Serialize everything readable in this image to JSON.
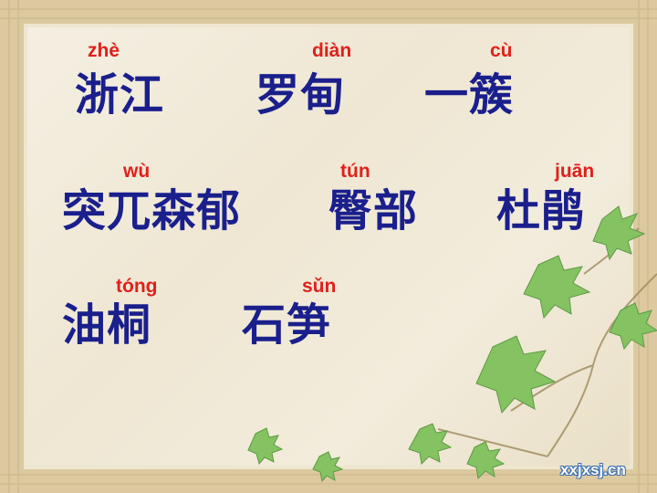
{
  "words": [
    {
      "pinyin": "zhè",
      "hanzi": "浙江"
    },
    {
      "pinyin": "diàn",
      "hanzi": "罗甸"
    },
    {
      "pinyin": "cù",
      "hanzi": "一簇"
    },
    {
      "pinyin": "wù",
      "hanzi": "突兀森郁"
    },
    {
      "pinyin": "tún",
      "hanzi": "臀部"
    },
    {
      "pinyin": "juān",
      "hanzi": "杜鹃"
    },
    {
      "pinyin": "tóng",
      "hanzi": "油桐"
    },
    {
      "pinyin": "sǔn",
      "hanzi": "石笋"
    }
  ],
  "watermark": "xxjxsj.cn",
  "colors": {
    "pinyin": "#e0201c",
    "hanzi": "#1a1f8c",
    "leaf": "#7fbf5a"
  }
}
